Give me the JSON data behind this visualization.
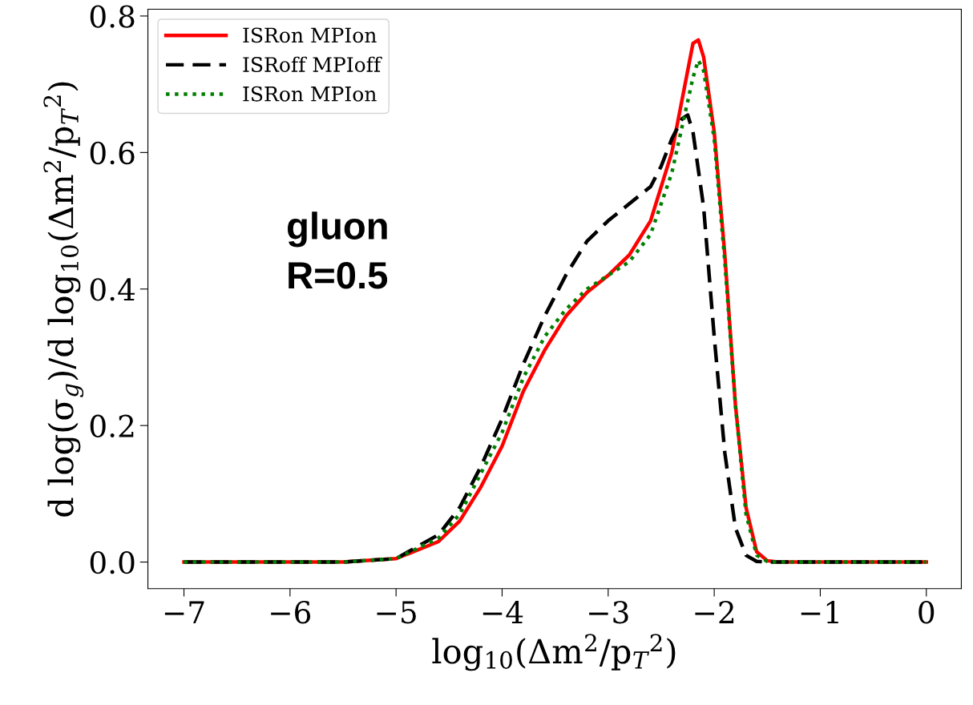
{
  "chart_data": {
    "type": "line",
    "xlabel": "log$_{10}$(Δm$^{2}$/p$_{T}$$^{2}$)",
    "ylabel": "d log(σ$_{g}$)/d log$_{10}$(Δm$^{2}$/p$_{T}$$^{2}$)",
    "xlim": [
      -7.34,
      0.33
    ],
    "ylim": [
      -0.039,
      0.81
    ],
    "xticks": [
      {
        "value": -7,
        "label": "−7"
      },
      {
        "value": -6,
        "label": "−6"
      },
      {
        "value": -5,
        "label": "−5"
      },
      {
        "value": -4,
        "label": "−4"
      },
      {
        "value": -3,
        "label": "−3"
      },
      {
        "value": -2,
        "label": "−2"
      },
      {
        "value": -1,
        "label": "−1"
      },
      0
    ],
    "yticks": [
      {
        "value": 0,
        "label": "0.0"
      },
      {
        "value": 0.2,
        "label": "0.2"
      },
      {
        "value": 0.4,
        "label": "0.4"
      },
      {
        "value": 0.6,
        "label": "0.6"
      },
      {
        "value": 0.8,
        "label": "0.8"
      }
    ],
    "grid": false,
    "legend": "top left",
    "annotations": [
      "gluon",
      "R=0.5"
    ],
    "series": [
      {
        "name": "ISRon MPIon",
        "color": "#ff0000",
        "line_style": "solid",
        "x": [
          -7,
          -5.5,
          -5,
          -4.6,
          -4.4,
          -4.2,
          -4,
          -3.8,
          -3.6,
          -3.4,
          -3.2,
          -3,
          -2.8,
          -2.6,
          -2.4,
          -2.3,
          -2.2,
          -2.15,
          -2.1,
          -2,
          -1.9,
          -1.8,
          -1.7,
          -1.6,
          -1.5,
          -1.4,
          0
        ],
        "values": [
          0,
          0,
          0.005,
          0.03,
          0.06,
          0.11,
          0.17,
          0.25,
          0.31,
          0.36,
          0.395,
          0.42,
          0.45,
          0.5,
          0.6,
          0.68,
          0.76,
          0.765,
          0.74,
          0.63,
          0.45,
          0.23,
          0.08,
          0.015,
          0.002,
          0,
          0
        ]
      },
      {
        "name": "ISRoff MPIoff",
        "color": "#000000",
        "line_style": "dashed",
        "x": [
          -7,
          -5.5,
          -5,
          -4.6,
          -4.4,
          -4.2,
          -4,
          -3.8,
          -3.6,
          -3.4,
          -3.2,
          -3,
          -2.8,
          -2.6,
          -2.5,
          -2.4,
          -2.3,
          -2.25,
          -2.2,
          -2.1,
          -2,
          -1.9,
          -1.8,
          -1.7,
          -1.6,
          -1.5,
          0
        ],
        "values": [
          0,
          0,
          0.005,
          0.04,
          0.08,
          0.14,
          0.21,
          0.29,
          0.36,
          0.42,
          0.47,
          0.5,
          0.525,
          0.55,
          0.58,
          0.62,
          0.65,
          0.655,
          0.63,
          0.52,
          0.33,
          0.16,
          0.05,
          0.01,
          0.001,
          0,
          0
        ]
      },
      {
        "name": "ISRon MPIon",
        "color": "#008000",
        "line_style": "dotted",
        "x": [
          -7,
          -5.5,
          -5,
          -4.6,
          -4.4,
          -4.2,
          -4,
          -3.8,
          -3.6,
          -3.4,
          -3.2,
          -3,
          -2.8,
          -2.6,
          -2.4,
          -2.3,
          -2.2,
          -2.15,
          -2.1,
          -2,
          -1.9,
          -1.8,
          -1.7,
          -1.6,
          -1.5,
          -1.4,
          0
        ],
        "values": [
          0,
          0,
          0.005,
          0.035,
          0.07,
          0.13,
          0.19,
          0.27,
          0.33,
          0.37,
          0.4,
          0.42,
          0.44,
          0.48,
          0.57,
          0.64,
          0.71,
          0.735,
          0.72,
          0.62,
          0.44,
          0.23,
          0.07,
          0.01,
          0.001,
          0,
          0
        ]
      }
    ]
  }
}
